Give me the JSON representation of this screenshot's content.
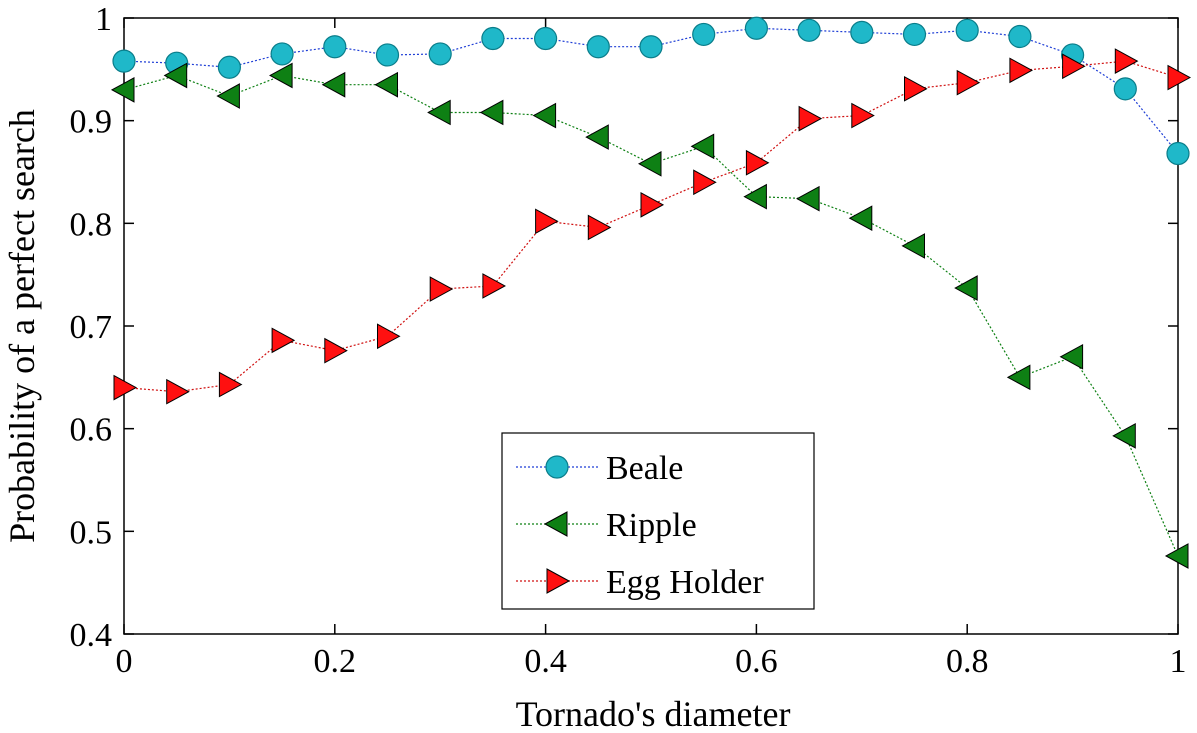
{
  "chart_data": {
    "type": "line",
    "xlabel": "Tornado's diameter",
    "ylabel": "Probability of a perfect search",
    "xlim": [
      0,
      1
    ],
    "ylim": [
      0.4,
      1
    ],
    "x_ticks": [
      0,
      0.2,
      0.4,
      0.6,
      0.8,
      1
    ],
    "x_tick_labels": [
      "0",
      "0.2",
      "0.4",
      "0.6",
      "0.8",
      "1"
    ],
    "y_ticks": [
      0.4,
      0.5,
      0.6,
      0.7,
      0.8,
      0.9,
      1
    ],
    "y_tick_labels": [
      "0.4",
      "0.5",
      "0.6",
      "0.7",
      "0.8",
      "0.9",
      "1"
    ],
    "grid": false,
    "legend_position": "bottom-center",
    "x": [
      0,
      0.05,
      0.1,
      0.15,
      0.2,
      0.25,
      0.3,
      0.35,
      0.4,
      0.45,
      0.5,
      0.55,
      0.6,
      0.65,
      0.7,
      0.75,
      0.8,
      0.85,
      0.9,
      0.95,
      1
    ],
    "series": [
      {
        "name": "Beale",
        "marker": "circle",
        "color": "#1fb8c9",
        "line_color": "#1f3fd6",
        "values": [
          0.958,
          0.956,
          0.952,
          0.965,
          0.972,
          0.964,
          0.965,
          0.98,
          0.98,
          0.972,
          0.972,
          0.984,
          0.99,
          0.988,
          0.986,
          0.984,
          0.988,
          0.982,
          0.964,
          0.931,
          0.868
        ]
      },
      {
        "name": "Ripple",
        "marker": "triangle-left",
        "color": "#0e8014",
        "line_color": "#0e8014",
        "values": [
          0.93,
          0.944,
          0.924,
          0.944,
          0.935,
          0.935,
          0.908,
          0.908,
          0.905,
          0.884,
          0.858,
          0.875,
          0.826,
          0.824,
          0.805,
          0.778,
          0.737,
          0.65,
          0.67,
          0.593,
          0.476
        ]
      },
      {
        "name": "Egg Holder",
        "marker": "triangle-right",
        "color": "#ff1010",
        "line_color": "#d01010",
        "values": [
          0.64,
          0.636,
          0.643,
          0.686,
          0.676,
          0.69,
          0.736,
          0.739,
          0.802,
          0.796,
          0.818,
          0.84,
          0.859,
          0.902,
          0.905,
          0.931,
          0.937,
          0.949,
          0.953,
          0.958,
          0.942
        ]
      }
    ]
  }
}
